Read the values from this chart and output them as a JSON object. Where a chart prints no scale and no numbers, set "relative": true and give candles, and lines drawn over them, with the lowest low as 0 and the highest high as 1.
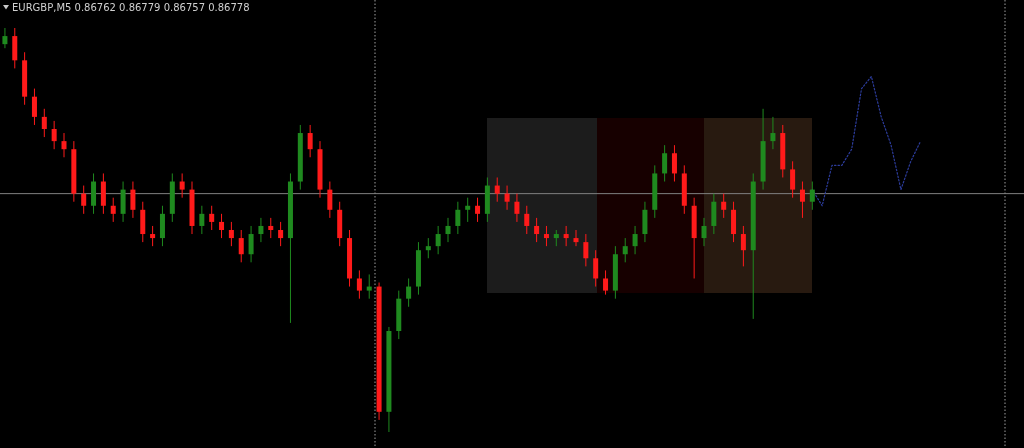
{
  "chart_data": {
    "type": "candlestick",
    "title": "EURGBP,M5 0.86762 0.86779 0.86757 0.86778",
    "relative": true,
    "categories": [
      null,
      null,
      null,
      null,
      null,
      null,
      null,
      null,
      null,
      null,
      null,
      null,
      null,
      null,
      null,
      null,
      null,
      null,
      null,
      null,
      null,
      null,
      null,
      null,
      null,
      null,
      null,
      null,
      null,
      null,
      null,
      null,
      null,
      null,
      null,
      null,
      null,
      null,
      null,
      null,
      null,
      null,
      null,
      null,
      null,
      null,
      null,
      null,
      null,
      null,
      null,
      null,
      null,
      null,
      null,
      null,
      null,
      null,
      null,
      null,
      null,
      null,
      null,
      null,
      null,
      null,
      null,
      null,
      null,
      null,
      null,
      null,
      null,
      null,
      null,
      null,
      null,
      null,
      null,
      null,
      null,
      null,
      null,
      null,
      null,
      null,
      null,
      null,
      null,
      null,
      null,
      null,
      null,
      null,
      null,
      null,
      null,
      null,
      null,
      null,
      null,
      null,
      null,
      null
    ],
    "ohlc": [
      [
        0.96,
        1.0,
        0.95,
        0.98
      ],
      [
        0.98,
        1.0,
        0.9,
        0.92
      ],
      [
        0.92,
        0.94,
        0.81,
        0.83
      ],
      [
        0.83,
        0.85,
        0.76,
        0.78
      ],
      [
        0.78,
        0.8,
        0.73,
        0.75
      ],
      [
        0.75,
        0.77,
        0.7,
        0.72
      ],
      [
        0.72,
        0.74,
        0.68,
        0.7
      ],
      [
        0.7,
        0.72,
        0.57,
        0.59
      ],
      [
        0.59,
        0.61,
        0.54,
        0.56
      ],
      [
        0.56,
        0.64,
        0.54,
        0.62
      ],
      [
        0.62,
        0.64,
        0.54,
        0.56
      ],
      [
        0.56,
        0.58,
        0.52,
        0.54
      ],
      [
        0.54,
        0.62,
        0.52,
        0.6
      ],
      [
        0.6,
        0.62,
        0.53,
        0.55
      ],
      [
        0.55,
        0.57,
        0.47,
        0.49
      ],
      [
        0.49,
        0.51,
        0.46,
        0.48
      ],
      [
        0.48,
        0.56,
        0.46,
        0.54
      ],
      [
        0.54,
        0.64,
        0.52,
        0.62
      ],
      [
        0.62,
        0.64,
        0.58,
        0.6
      ],
      [
        0.6,
        0.62,
        0.49,
        0.51
      ],
      [
        0.51,
        0.56,
        0.49,
        0.54
      ],
      [
        0.54,
        0.56,
        0.5,
        0.52
      ],
      [
        0.52,
        0.54,
        0.48,
        0.5
      ],
      [
        0.5,
        0.52,
        0.46,
        0.48
      ],
      [
        0.48,
        0.5,
        0.42,
        0.44
      ],
      [
        0.44,
        0.51,
        0.42,
        0.49
      ],
      [
        0.49,
        0.53,
        0.47,
        0.51
      ],
      [
        0.51,
        0.53,
        0.48,
        0.5
      ],
      [
        0.5,
        0.52,
        0.46,
        0.48
      ],
      [
        0.48,
        0.64,
        0.27,
        0.62
      ],
      [
        0.62,
        0.76,
        0.6,
        0.74
      ],
      [
        0.74,
        0.76,
        0.68,
        0.7
      ],
      [
        0.7,
        0.72,
        0.58,
        0.6
      ],
      [
        0.6,
        0.62,
        0.53,
        0.55
      ],
      [
        0.55,
        0.57,
        0.46,
        0.48
      ],
      [
        0.48,
        0.5,
        0.36,
        0.38
      ],
      [
        0.38,
        0.4,
        0.33,
        0.35
      ],
      [
        0.35,
        0.39,
        0.33,
        0.36
      ],
      [
        0.36,
        0.37,
        0.03,
        0.05
      ],
      [
        0.05,
        0.26,
        0.0,
        0.25
      ],
      [
        0.25,
        0.35,
        0.23,
        0.33
      ],
      [
        0.33,
        0.38,
        0.31,
        0.36
      ],
      [
        0.36,
        0.47,
        0.34,
        0.45
      ],
      [
        0.45,
        0.48,
        0.43,
        0.46
      ],
      [
        0.46,
        0.51,
        0.44,
        0.49
      ],
      [
        0.49,
        0.53,
        0.47,
        0.51
      ],
      [
        0.51,
        0.57,
        0.49,
        0.55
      ],
      [
        0.55,
        0.58,
        0.52,
        0.56
      ],
      [
        0.56,
        0.58,
        0.52,
        0.54
      ],
      [
        0.54,
        0.63,
        0.52,
        0.61
      ],
      [
        0.61,
        0.63,
        0.57,
        0.59
      ],
      [
        0.59,
        0.61,
        0.55,
        0.57
      ],
      [
        0.57,
        0.59,
        0.52,
        0.54
      ],
      [
        0.54,
        0.56,
        0.49,
        0.51
      ],
      [
        0.51,
        0.53,
        0.47,
        0.49
      ],
      [
        0.49,
        0.51,
        0.46,
        0.48
      ],
      [
        0.48,
        0.5,
        0.46,
        0.49
      ],
      [
        0.49,
        0.51,
        0.46,
        0.48
      ],
      [
        0.48,
        0.5,
        0.46,
        0.47
      ],
      [
        0.47,
        0.49,
        0.41,
        0.43
      ],
      [
        0.43,
        0.45,
        0.36,
        0.38
      ],
      [
        0.38,
        0.4,
        0.34,
        0.35
      ],
      [
        0.35,
        0.46,
        0.33,
        0.44
      ],
      [
        0.44,
        0.48,
        0.42,
        0.46
      ],
      [
        0.46,
        0.51,
        0.44,
        0.49
      ],
      [
        0.49,
        0.57,
        0.47,
        0.55
      ],
      [
        0.55,
        0.66,
        0.53,
        0.64
      ],
      [
        0.64,
        0.71,
        0.62,
        0.69
      ],
      [
        0.69,
        0.71,
        0.62,
        0.64
      ],
      [
        0.64,
        0.66,
        0.54,
        0.56
      ],
      [
        0.56,
        0.58,
        0.38,
        0.48
      ],
      [
        0.48,
        0.53,
        0.46,
        0.51
      ],
      [
        0.51,
        0.59,
        0.49,
        0.57
      ],
      [
        0.57,
        0.59,
        0.53,
        0.55
      ],
      [
        0.55,
        0.57,
        0.47,
        0.49
      ],
      [
        0.49,
        0.51,
        0.41,
        0.45
      ],
      [
        0.45,
        0.64,
        0.28,
        0.62
      ],
      [
        0.62,
        0.8,
        0.6,
        0.72
      ],
      [
        0.72,
        0.78,
        0.7,
        0.74
      ],
      [
        0.74,
        0.76,
        0.63,
        0.65
      ],
      [
        0.65,
        0.67,
        0.58,
        0.6
      ],
      [
        0.6,
        0.62,
        0.53,
        0.57
      ],
      [
        0.57,
        0.62,
        0.55,
        0.6
      ],
      null,
      null,
      null,
      null,
      null,
      null,
      null,
      null,
      null,
      null,
      null,
      null,
      null,
      null,
      null,
      null,
      null,
      null,
      null,
      null,
      null
    ],
    "series": [
      {
        "type": "line",
        "color": "#2c3c9c",
        "line_style": "dotted",
        "values": [
          null,
          null,
          null,
          null,
          null,
          null,
          null,
          null,
          null,
          null,
          null,
          null,
          null,
          null,
          null,
          null,
          null,
          null,
          null,
          null,
          null,
          null,
          null,
          null,
          null,
          null,
          null,
          null,
          null,
          null,
          null,
          null,
          null,
          null,
          null,
          null,
          null,
          null,
          null,
          null,
          null,
          null,
          null,
          null,
          null,
          null,
          null,
          null,
          null,
          null,
          null,
          null,
          null,
          null,
          null,
          null,
          null,
          null,
          null,
          null,
          null,
          null,
          null,
          null,
          null,
          null,
          null,
          null,
          null,
          null,
          null,
          null,
          null,
          null,
          null,
          null,
          null,
          null,
          null,
          null,
          null,
          null,
          0.6,
          0.56,
          0.66,
          0.66,
          0.7,
          0.85,
          0.88,
          0.78,
          0.71,
          0.6,
          0.67,
          0.72,
          null,
          null,
          null,
          null,
          null,
          null,
          null,
          null,
          null,
          null
        ]
      }
    ],
    "ref_lines": [
      {
        "axis": "y",
        "value": 0.59,
        "color": "#808080",
        "line_style": "solid"
      }
    ]
  }
}
